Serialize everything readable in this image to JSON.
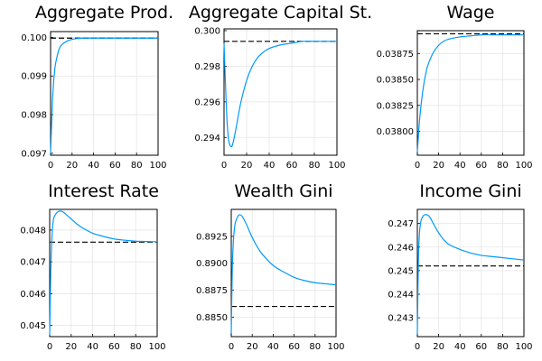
{
  "colors": {
    "series": "#009AFA",
    "steady_state": "#000000"
  },
  "chart_data": [
    {
      "type": "line",
      "title": "Aggregate Prod.",
      "xlim": [
        0,
        100
      ],
      "ylim": [
        0.09695,
        0.10015
      ],
      "grid": true,
      "xticks": [
        0,
        20,
        40,
        60,
        80,
        100
      ],
      "yticks": [
        0.097,
        0.098,
        0.099,
        0.1
      ],
      "ytick_labels": [
        "0.097",
        "0.098",
        "0.099",
        "0.100"
      ],
      "steady_state": 0.09998,
      "x": [
        0,
        2,
        4,
        6,
        8,
        10,
        15,
        20,
        25,
        30,
        40,
        50,
        60,
        70,
        80,
        90,
        100
      ],
      "y": [
        0.097,
        0.0985,
        0.0992,
        0.0995,
        0.0997,
        0.0998,
        0.0999,
        0.09995,
        0.09997,
        0.09998,
        0.09998,
        0.09998,
        0.09998,
        0.09998,
        0.09998,
        0.09998,
        0.09998
      ]
    },
    {
      "type": "line",
      "title": "Aggregate Capital St.",
      "xlim": [
        0,
        100
      ],
      "ylim": [
        0.293,
        0.3001
      ],
      "grid": true,
      "xticks": [
        0,
        20,
        40,
        60,
        80,
        100
      ],
      "yticks": [
        0.294,
        0.296,
        0.298,
        0.3
      ],
      "ytick_labels": [
        "0.294",
        "0.296",
        "0.298",
        "0.300"
      ],
      "steady_state": 0.2994,
      "x": [
        0,
        1,
        2,
        3,
        4,
        5,
        6,
        7,
        8,
        10,
        12,
        15,
        20,
        25,
        30,
        35,
        40,
        50,
        60,
        70,
        80,
        90,
        100
      ],
      "y": [
        0.2993,
        0.2975,
        0.2958,
        0.2946,
        0.2939,
        0.2936,
        0.2935,
        0.2935,
        0.2937,
        0.2943,
        0.295,
        0.296,
        0.2972,
        0.298,
        0.2985,
        0.2988,
        0.299,
        0.2992,
        0.2993,
        0.2994,
        0.2994,
        0.2994,
        0.2994
      ]
    },
    {
      "type": "line",
      "title": "Wage",
      "xlim": [
        0,
        100
      ],
      "ylim": [
        0.03777,
        0.03897
      ],
      "grid": true,
      "xticks": [
        0,
        20,
        40,
        60,
        80,
        100
      ],
      "yticks": [
        0.038,
        0.03825,
        0.0385,
        0.03875
      ],
      "ytick_labels": [
        "0.03800",
        "0.03825",
        "0.03850",
        "0.03875"
      ],
      "steady_state": 0.03894,
      "x": [
        0,
        2,
        4,
        6,
        8,
        10,
        15,
        20,
        25,
        30,
        40,
        50,
        60,
        70,
        80,
        90,
        100
      ],
      "y": [
        0.0378,
        0.0381,
        0.0383,
        0.03845,
        0.03856,
        0.03864,
        0.03876,
        0.03883,
        0.03887,
        0.03889,
        0.03891,
        0.03892,
        0.03893,
        0.03893,
        0.03893,
        0.03893,
        0.03893
      ]
    },
    {
      "type": "line",
      "title": "Interest Rate",
      "xlim": [
        0,
        100
      ],
      "ylim": [
        0.04465,
        0.04865
      ],
      "grid": true,
      "xticks": [
        0,
        20,
        40,
        60,
        80,
        100
      ],
      "yticks": [
        0.045,
        0.046,
        0.047,
        0.048
      ],
      "ytick_labels": [
        "0.045",
        "0.046",
        "0.047",
        "0.048"
      ],
      "steady_state": 0.04762,
      "x": [
        0,
        1,
        2,
        3,
        4,
        6,
        8,
        10,
        12,
        15,
        20,
        25,
        30,
        40,
        50,
        60,
        70,
        80,
        90,
        100
      ],
      "y": [
        0.0447,
        0.0467,
        0.0477,
        0.0482,
        0.0484,
        0.04852,
        0.04858,
        0.0486,
        0.04858,
        0.0485,
        0.04835,
        0.0482,
        0.04808,
        0.0479,
        0.0478,
        0.04772,
        0.04768,
        0.04765,
        0.04764,
        0.04763
      ]
    },
    {
      "type": "line",
      "title": "Wealth Gini",
      "xlim": [
        0,
        100
      ],
      "ylim": [
        0.8832,
        0.895
      ],
      "grid": true,
      "xticks": [
        0,
        20,
        40,
        60,
        80,
        100
      ],
      "yticks": [
        0.885,
        0.8875,
        0.89,
        0.8925
      ],
      "ytick_labels": [
        "0.8850",
        "0.8875",
        "0.8900",
        "0.8925"
      ],
      "steady_state": 0.886,
      "x": [
        0,
        1,
        2,
        3,
        4,
        6,
        8,
        10,
        12,
        15,
        20,
        25,
        30,
        40,
        50,
        60,
        70,
        80,
        90,
        100
      ],
      "y": [
        0.8835,
        0.8895,
        0.892,
        0.8932,
        0.8938,
        0.8943,
        0.8945,
        0.8944,
        0.8941,
        0.8935,
        0.8924,
        0.8915,
        0.8908,
        0.8898,
        0.8892,
        0.8887,
        0.8884,
        0.8882,
        0.8881,
        0.888
      ]
    },
    {
      "type": "line",
      "title": "Income Gini",
      "xlim": [
        0,
        100
      ],
      "ylim": [
        0.2422,
        0.2476
      ],
      "grid": true,
      "xticks": [
        0,
        20,
        40,
        60,
        80,
        100
      ],
      "yticks": [
        0.243,
        0.244,
        0.245,
        0.246,
        0.247
      ],
      "ytick_labels": [
        "0.243",
        "0.244",
        "0.245",
        "0.246",
        "0.247"
      ],
      "steady_state": 0.2452,
      "x": [
        0,
        1,
        2,
        3,
        4,
        6,
        8,
        10,
        12,
        15,
        20,
        25,
        30,
        40,
        50,
        60,
        70,
        80,
        90,
        100
      ],
      "y": [
        0.2423,
        0.2455,
        0.2466,
        0.247,
        0.2472,
        0.24735,
        0.24738,
        0.24735,
        0.24725,
        0.247,
        0.2466,
        0.2463,
        0.2461,
        0.2459,
        0.24575,
        0.24565,
        0.2456,
        0.24555,
        0.2455,
        0.24545
      ]
    }
  ]
}
